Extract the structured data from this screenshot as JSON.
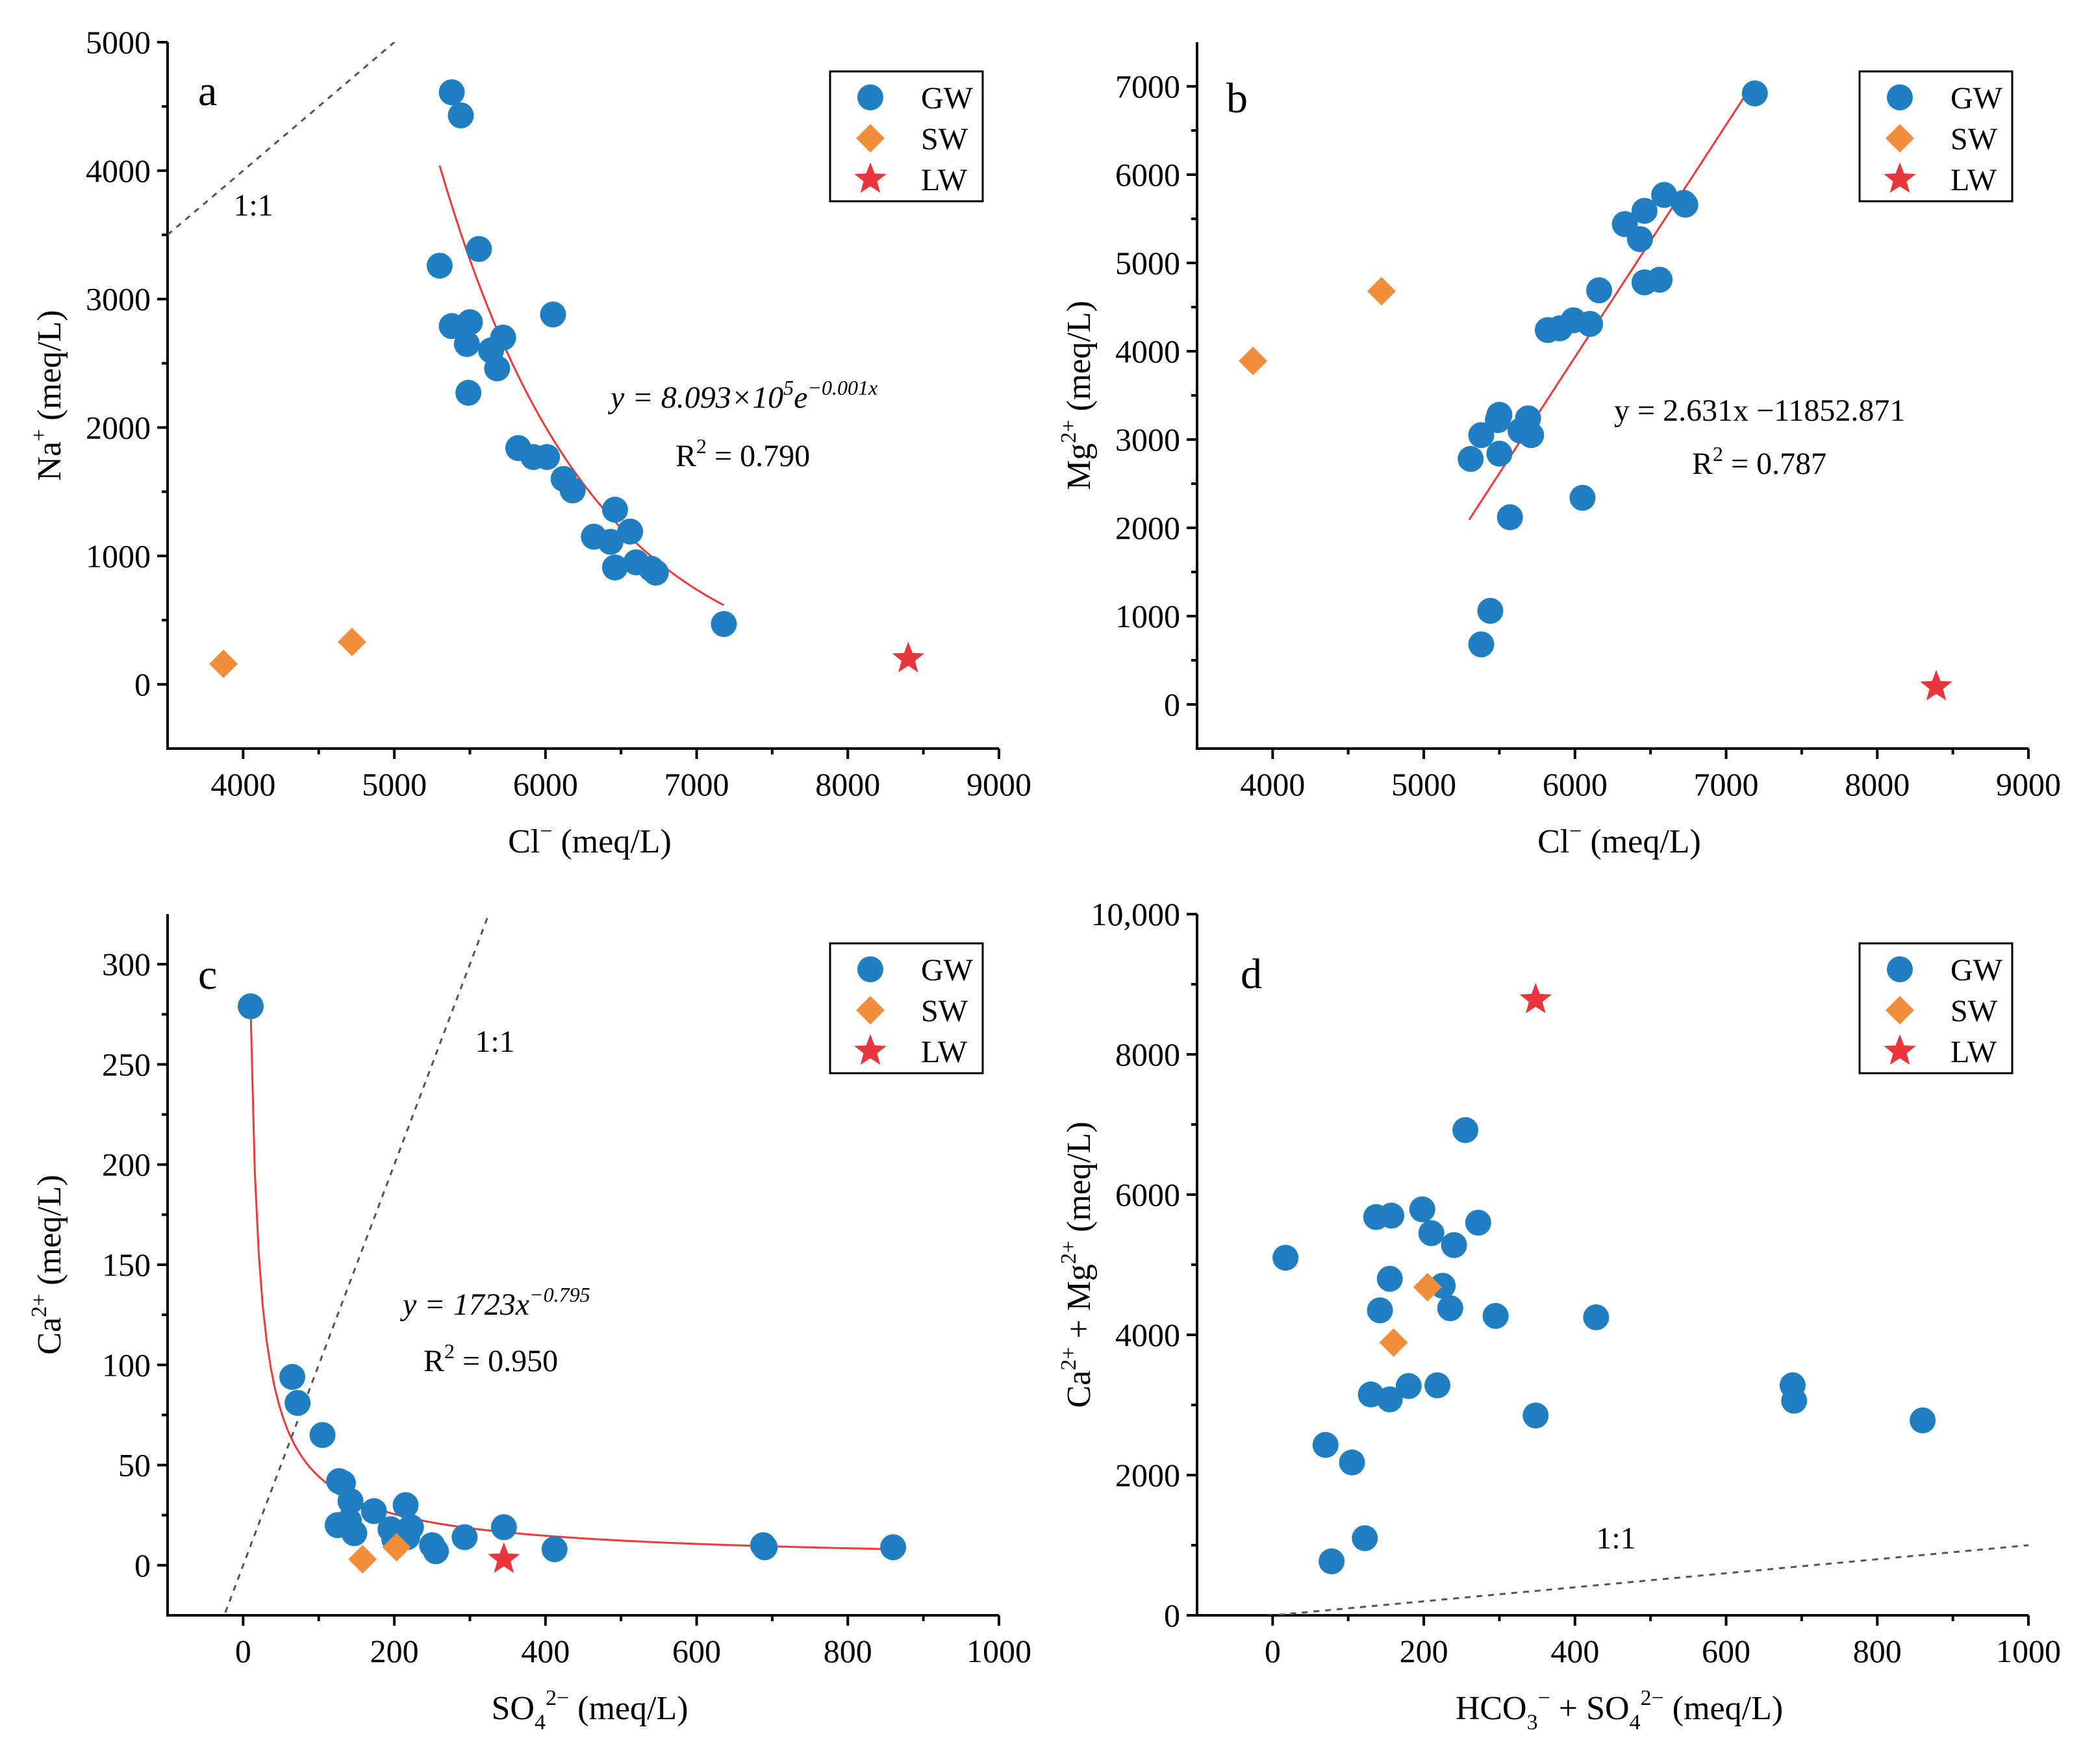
{
  "colors": {
    "gw": "#1f7fc0",
    "sw": "#f28e3b",
    "lw": "#e8363c",
    "fit": "#ee3a3a",
    "ref": "#555555"
  },
  "chart_data": [
    {
      "id": "a",
      "type": "scatter",
      "panel_label": "a",
      "xlabel_main": "Cl",
      "xlabel_sup": "−",
      "xlabel_unit": "(meq/L)",
      "ylabel_main": "Na",
      "ylabel_sup": "+",
      "ylabel_unit": "(meq/L)",
      "xlim": [
        3500,
        9000
      ],
      "ylim": [
        -500,
        5000
      ],
      "xticks": [
        4000,
        5000,
        6000,
        7000,
        8000,
        9000
      ],
      "xtick_labels": [
        "4000",
        "5000",
        "6000",
        "7000",
        "8000",
        "9000"
      ],
      "yticks": [
        0,
        1000,
        2000,
        3000,
        4000,
        5000
      ],
      "ytick_labels": [
        "0",
        "1000",
        "2000",
        "3000",
        "4000",
        "5000"
      ],
      "legend": [
        "GW",
        "SW",
        "LW"
      ],
      "legend_position": "top-right",
      "ref_line": {
        "label": "1:1",
        "slope": 1,
        "intercept": 0
      },
      "fit": {
        "model": "exp",
        "a": 809300,
        "b": -0.001,
        "x_range": [
          5300,
          7180
        ]
      },
      "equation": {
        "prefix": "y = 8.093×10",
        "exp1": "5",
        "mid": "e",
        "exp2": "−0.001x"
      },
      "r2": {
        "prefix": "R",
        "sup": "2",
        "suffix": " = 0.790"
      },
      "series": [
        {
          "name": "GW",
          "marker": "circle",
          "points": [
            [
              5380,
              4610
            ],
            [
              5440,
              4430
            ],
            [
              5300,
              3260
            ],
            [
              5560,
              3390
            ],
            [
              5380,
              2790
            ],
            [
              5500,
              2820
            ],
            [
              5480,
              2650
            ],
            [
              5640,
              2600
            ],
            [
              5720,
              2700
            ],
            [
              5680,
              2460
            ],
            [
              5490,
              2270
            ],
            [
              6050,
              2880
            ],
            [
              5820,
              1840
            ],
            [
              5920,
              1770
            ],
            [
              6010,
              1770
            ],
            [
              6120,
              1600
            ],
            [
              6180,
              1510
            ],
            [
              6460,
              1360
            ],
            [
              6320,
              1150
            ],
            [
              6430,
              1110
            ],
            [
              6560,
              1190
            ],
            [
              6600,
              950
            ],
            [
              6460,
              910
            ],
            [
              6700,
              900
            ],
            [
              6730,
              870
            ],
            [
              7180,
              470
            ]
          ]
        },
        {
          "name": "SW",
          "marker": "diamond",
          "points": [
            [
              3870,
              160
            ],
            [
              4720,
              330
            ]
          ]
        },
        {
          "name": "LW",
          "marker": "star",
          "points": [
            [
              8400,
              200
            ]
          ]
        }
      ]
    },
    {
      "id": "b",
      "type": "scatter",
      "panel_label": "b",
      "xlabel_main": "Cl",
      "xlabel_sup": "−",
      "xlabel_unit": "(meq/L)",
      "ylabel_main": "Mg",
      "ylabel_sup": "2+",
      "ylabel_unit": "(meq/L)",
      "xlim": [
        3500,
        9000
      ],
      "ylim": [
        -500,
        7500
      ],
      "xticks": [
        4000,
        5000,
        6000,
        7000,
        8000,
        9000
      ],
      "xtick_labels": [
        "4000",
        "5000",
        "6000",
        "7000",
        "8000",
        "9000"
      ],
      "yticks": [
        0,
        1000,
        2000,
        3000,
        4000,
        5000,
        6000,
        7000
      ],
      "ytick_labels": [
        "0",
        "1000",
        "2000",
        "3000",
        "4000",
        "5000",
        "6000",
        "7000"
      ],
      "legend": [
        "GW",
        "SW",
        "LW"
      ],
      "legend_position": "top-right",
      "fit": {
        "model": "linear",
        "a": 2.631,
        "b": -11852.871,
        "x_range": [
          5300,
          7180
        ]
      },
      "equation": {
        "prefix": "y = 2.631x −11852.871"
      },
      "r2": {
        "prefix": "R",
        "sup": "2",
        "suffix": " = 0.787"
      },
      "series": [
        {
          "name": "GW",
          "marker": "circle",
          "points": [
            [
              7190,
              6920
            ],
            [
              6590,
              5770
            ],
            [
              6460,
              5590
            ],
            [
              6330,
              5440
            ],
            [
              6430,
              5270
            ],
            [
              6720,
              5680
            ],
            [
              6730,
              5660
            ],
            [
              6560,
              4810
            ],
            [
              6460,
              4780
            ],
            [
              6160,
              4690
            ],
            [
              5990,
              4350
            ],
            [
              6100,
              4310
            ],
            [
              5900,
              4260
            ],
            [
              5820,
              4240
            ],
            [
              5500,
              3280
            ],
            [
              5690,
              3240
            ],
            [
              5490,
              3220
            ],
            [
              5380,
              3050
            ],
            [
              5640,
              3100
            ],
            [
              5710,
              3050
            ],
            [
              5310,
              2780
            ],
            [
              5500,
              2840
            ],
            [
              5570,
              2120
            ],
            [
              6050,
              2340
            ],
            [
              5440,
              1060
            ],
            [
              5380,
              680
            ]
          ]
        },
        {
          "name": "SW",
          "marker": "diamond",
          "points": [
            [
              3870,
              3890
            ],
            [
              4720,
              4680
            ]
          ]
        },
        {
          "name": "LW",
          "marker": "star",
          "points": [
            [
              8390,
              200
            ]
          ]
        }
      ]
    },
    {
      "id": "c",
      "type": "scatter",
      "panel_label": "c",
      "xlabel_main": "SO",
      "xlabel_sub": "4",
      "xlabel_sup": "2−",
      "xlabel_unit": "(meq/L)",
      "ylabel_main": "Ca",
      "ylabel_sup": "2+",
      "ylabel_unit": "(meq/L)",
      "xlim": [
        -100,
        1000
      ],
      "ylim": [
        -25,
        325
      ],
      "xticks": [
        0,
        200,
        400,
        600,
        800,
        1000
      ],
      "xtick_labels": [
        "0",
        "200",
        "400",
        "600",
        "800",
        "1000"
      ],
      "yticks": [
        0,
        50,
        100,
        150,
        200,
        250,
        300
      ],
      "ytick_labels": [
        "0",
        "50",
        "100",
        "150",
        "200",
        "250",
        "300"
      ],
      "legend": [
        "GW",
        "SW",
        "LW"
      ],
      "legend_position": "top-right",
      "ref_line": {
        "label": "1:1",
        "slope": 1,
        "intercept": 0
      },
      "fit": {
        "model": "power",
        "a": 1723,
        "b": -0.795,
        "x_range": [
          10,
          860
        ]
      },
      "equation": {
        "prefix": "y = 1723x",
        "exp1": "−0.795"
      },
      "r2": {
        "prefix": "R",
        "sup": "2",
        "suffix": " = 0.950"
      },
      "series": [
        {
          "name": "GW",
          "marker": "circle",
          "points": [
            [
              10,
              279
            ],
            [
              65,
              94
            ],
            [
              72,
              81
            ],
            [
              105,
              65
            ],
            [
              127,
              42
            ],
            [
              132,
              41
            ],
            [
              142,
              32
            ],
            [
              125,
              20
            ],
            [
              140,
              22
            ],
            [
              147,
              16
            ],
            [
              173,
              27
            ],
            [
              195,
              18
            ],
            [
              200,
              13
            ],
            [
              215,
              30
            ],
            [
              222,
              19
            ],
            [
              217,
              14
            ],
            [
              250,
              10
            ],
            [
              255,
              7
            ],
            [
              293,
              14
            ],
            [
              345,
              19
            ],
            [
              412,
              8
            ],
            [
              688,
              10
            ],
            [
              690,
              9
            ],
            [
              860,
              9
            ]
          ]
        },
        {
          "name": "SW",
          "marker": "diamond",
          "points": [
            [
              158,
              3
            ],
            [
              203,
              9
            ]
          ]
        },
        {
          "name": "LW",
          "marker": "star",
          "points": [
            [
              345,
              3
            ]
          ]
        }
      ]
    },
    {
      "id": "d",
      "type": "scatter",
      "panel_label": "d",
      "xlabel_parts": [
        "HCO",
        "3",
        "−",
        " + SO",
        "4",
        "2−"
      ],
      "xlabel_unit": "(meq/L)",
      "ylabel_parts": [
        "Ca",
        "2+",
        " + Mg",
        "2+"
      ],
      "ylabel_unit": "(meq/L)",
      "xlim": [
        -100,
        1000
      ],
      "ylim": [
        0,
        10000
      ],
      "xticks": [
        0,
        200,
        400,
        600,
        800,
        1000
      ],
      "xtick_labels": [
        "0",
        "200",
        "400",
        "600",
        "800",
        "1000"
      ],
      "yticks": [
        0,
        2000,
        4000,
        6000,
        8000,
        10000
      ],
      "ytick_labels": [
        "0",
        "2000",
        "4000",
        "6000",
        "8000",
        "10,000"
      ],
      "legend": [
        "GW",
        "SW",
        "LW"
      ],
      "legend_position": "top-right",
      "ref_line": {
        "label": "1:1",
        "slope": 1,
        "intercept": 0
      },
      "series": [
        {
          "name": "GW",
          "marker": "circle",
          "points": [
            [
              255,
              6920
            ],
            [
              198,
              5790
            ],
            [
              272,
              5600
            ],
            [
              137,
              5680
            ],
            [
              157,
              5700
            ],
            [
              210,
              5450
            ],
            [
              240,
              5280
            ],
            [
              17,
              5100
            ],
            [
              155,
              4800
            ],
            [
              225,
              4700
            ],
            [
              142,
              4350
            ],
            [
              235,
              4380
            ],
            [
              295,
              4270
            ],
            [
              428,
              4250
            ],
            [
              130,
              3150
            ],
            [
              155,
              3080
            ],
            [
              180,
              3270
            ],
            [
              218,
              3280
            ],
            [
              348,
              2850
            ],
            [
              688,
              3280
            ],
            [
              690,
              3060
            ],
            [
              860,
              2780
            ],
            [
              70,
              2430
            ],
            [
              105,
              2180
            ],
            [
              122,
              1100
            ],
            [
              78,
              770
            ]
          ]
        },
        {
          "name": "SW",
          "marker": "diamond",
          "points": [
            [
              205,
              4680
            ],
            [
              160,
              3890
            ]
          ]
        },
        {
          "name": "LW",
          "marker": "star",
          "points": [
            [
              348,
              8780
            ]
          ]
        }
      ]
    }
  ]
}
